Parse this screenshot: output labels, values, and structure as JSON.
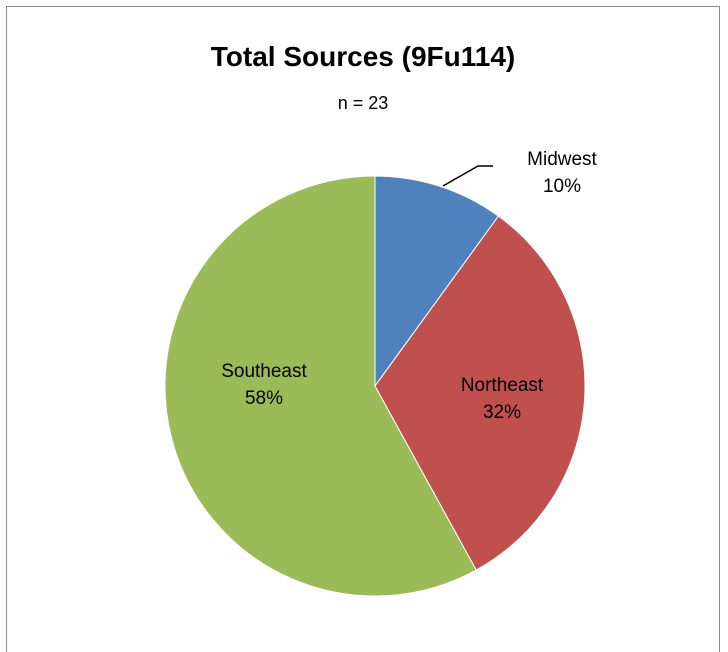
{
  "chart_data": {
    "type": "pie",
    "title": "Total Sources (9Fu114)",
    "subtitle": "n = 23",
    "slices": [
      {
        "name": "Midwest",
        "value": 10,
        "value_label": "10%",
        "color": "#4f81bd"
      },
      {
        "name": "Northeast",
        "value": 32,
        "value_label": "32%",
        "color": "#c0504d"
      },
      {
        "name": "Southeast",
        "value": 58,
        "value_label": "58%",
        "color": "#9bbb59"
      }
    ],
    "start_angle": "12 o'clock",
    "direction": "clockwise",
    "legend": "none",
    "data_labels": "category name and percentage"
  }
}
